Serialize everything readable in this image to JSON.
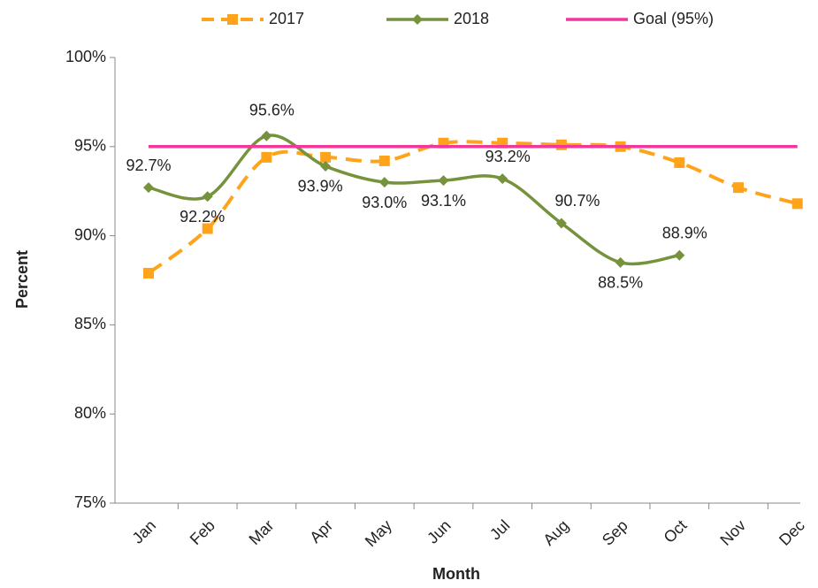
{
  "chart_data": {
    "type": "line",
    "x_label": "Month",
    "y_label": "Percent",
    "categories": [
      "Jan",
      "Feb",
      "Mar",
      "Apr",
      "May",
      "Jun",
      "Jul",
      "Aug",
      "Sep",
      "Oct",
      "Nov",
      "Dec"
    ],
    "series": [
      {
        "name": "2017",
        "color": "#ffa31a",
        "dash": true,
        "marker": "square",
        "values": [
          87.9,
          90.4,
          94.4,
          94.4,
          94.2,
          95.2,
          95.2,
          95.1,
          95.0,
          94.1,
          92.7,
          91.8
        ]
      },
      {
        "name": "2018",
        "color": "#76923c",
        "dash": false,
        "marker": "diamond",
        "values": [
          92.7,
          92.2,
          95.6,
          93.9,
          93.0,
          93.1,
          93.2,
          90.7,
          88.5,
          88.9,
          null,
          null
        ],
        "value_labels": [
          "92.7%",
          "92.2%",
          "95.6%",
          "93.9%",
          "93.0%",
          "93.1%",
          "93.2%",
          "90.7%",
          "88.5%",
          "88.9%",
          null,
          null
        ]
      },
      {
        "name": "Goal (95%)",
        "color": "#f0379a",
        "dash": false,
        "marker": "none",
        "values": [
          95,
          95,
          95,
          95,
          95,
          95,
          95,
          95,
          95,
          95,
          95,
          95
        ]
      }
    ],
    "ylim": [
      75,
      100
    ],
    "yticks": [
      {
        "value": 75,
        "label": "75%"
      },
      {
        "value": 80,
        "label": "80%"
      },
      {
        "value": 85,
        "label": "85%"
      },
      {
        "value": 90,
        "label": "90%"
      },
      {
        "value": 95,
        "label": "95%"
      },
      {
        "value": 100,
        "label": "100%"
      }
    ],
    "legend": "top",
    "smooth": true
  }
}
